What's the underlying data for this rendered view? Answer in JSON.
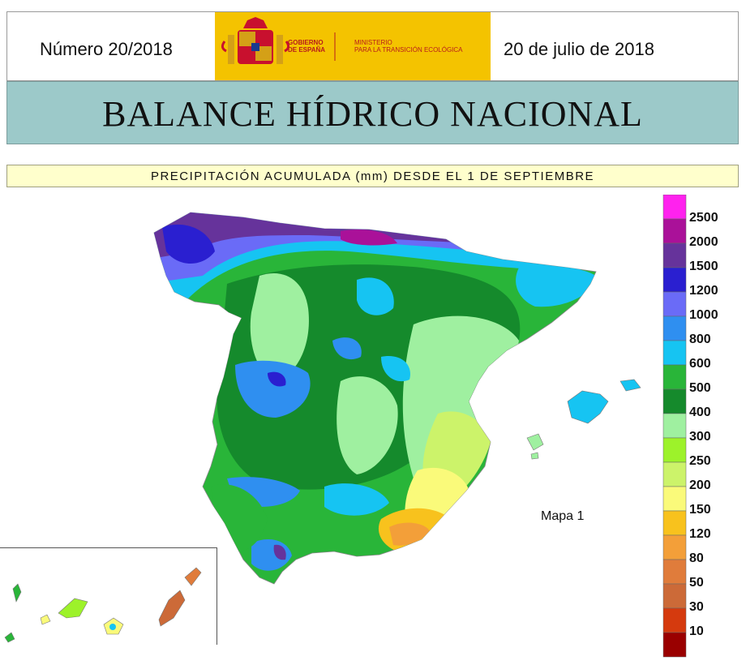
{
  "header": {
    "issue": "Número 20/2018",
    "date": "20 de julio de 2018",
    "gov_line1": "GOBIERNO",
    "gov_line2": "DE ESPAÑA",
    "min_line1": "MINISTERIO",
    "min_line2": "PARA LA TRANSICIÓN ECOLÓGICA"
  },
  "title": "BALANCE HÍDRICO NACIONAL",
  "subtitle": "PRECIPITACIÓN ACUMULADA (mm) DESDE EL 1 DE SEPTIEMBRE",
  "map_label": "Mapa 1",
  "legend": [
    {
      "label": "2500",
      "color": "#ff22ee"
    },
    {
      "label": "2000",
      "color": "#aa1199"
    },
    {
      "label": "1500",
      "color": "#66339b"
    },
    {
      "label": "1200",
      "color": "#2a1fd0"
    },
    {
      "label": "1000",
      "color": "#6a6bf7"
    },
    {
      "label": "800",
      "color": "#2f8ff0"
    },
    {
      "label": "600",
      "color": "#16c4f2"
    },
    {
      "label": "500",
      "color": "#29b539"
    },
    {
      "label": "400",
      "color": "#158a2c"
    },
    {
      "label": "300",
      "color": "#9ff0a0"
    },
    {
      "label": "250",
      "color": "#9df22a"
    },
    {
      "label": "200",
      "color": "#ccf36a"
    },
    {
      "label": "150",
      "color": "#fafa7a"
    },
    {
      "label": "120",
      "color": "#f8c21d"
    },
    {
      "label": "80",
      "color": "#f39f39"
    },
    {
      "label": "50",
      "color": "#e07c3b"
    },
    {
      "label": "30",
      "color": "#cc6a38"
    },
    {
      "label": "10",
      "color": "#d53a0e"
    },
    {
      "label": "",
      "color": "#9a0000"
    }
  ]
}
